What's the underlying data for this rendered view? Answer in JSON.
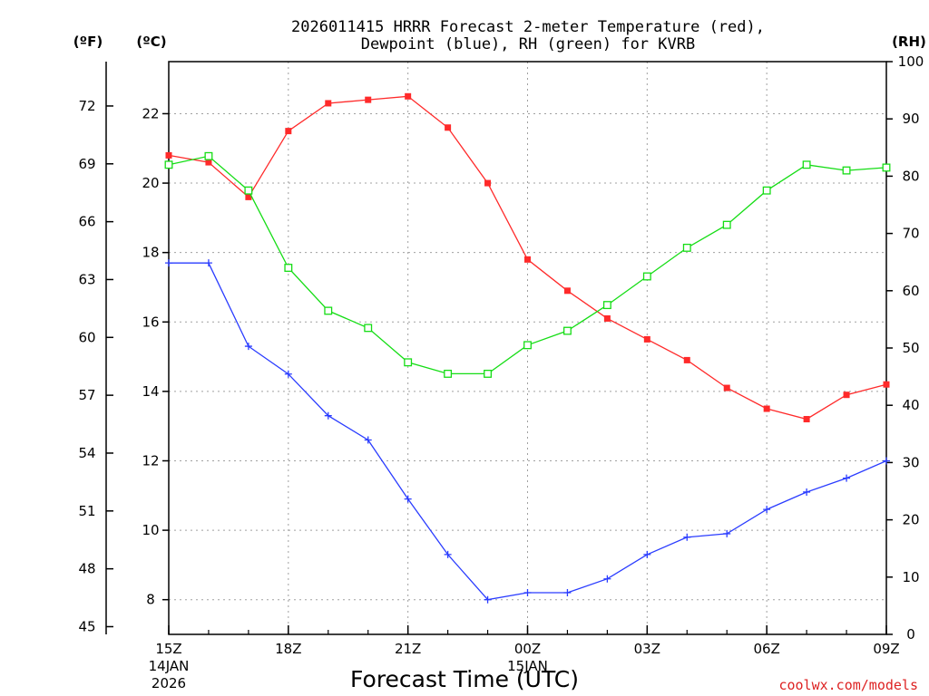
{
  "colors": {
    "temperature": "#ff2a2a",
    "dewpoint": "#2a3cff",
    "rh": "#15dd15",
    "credit": "#dd2222"
  },
  "chart_data": {
    "type": "line",
    "title_line1": "2026011415 HRRR Forecast 2-meter Temperature (red),",
    "title_line2": "Dewpoint (blue), RH (green) for KVRB",
    "xlabel": "Forecast Time (UTC)",
    "credit": "coolwx.com/models",
    "units": {
      "fahrenheit": "(ºF)",
      "celsius": "(ºC)",
      "rh": "(RH)"
    },
    "x_hours": [
      0,
      1,
      2,
      3,
      4,
      5,
      6,
      7,
      8,
      9,
      10,
      11,
      12,
      13,
      14,
      15,
      16,
      17,
      18
    ],
    "x_ticks": [
      {
        "hour": 0,
        "label": "15Z",
        "label2": "14JAN",
        "label3": "2026"
      },
      {
        "hour": 3,
        "label": "18Z"
      },
      {
        "hour": 6,
        "label": "21Z"
      },
      {
        "hour": 9,
        "label": "00Z",
        "label2": "15JAN"
      },
      {
        "hour": 12,
        "label": "03Z"
      },
      {
        "hour": 15,
        "label": "06Z"
      },
      {
        "hour": 18,
        "label": "09Z"
      }
    ],
    "xlim": [
      0,
      18
    ],
    "celsius_axis": {
      "ylim": [
        7,
        23.5
      ],
      "ticks": [
        "8",
        "10",
        "12",
        "14",
        "16",
        "18",
        "20",
        "22"
      ]
    },
    "fahrenheit_axis": {
      "ylim": [
        44.6,
        74.3
      ],
      "ticks": [
        "45",
        "48",
        "51",
        "54",
        "57",
        "60",
        "63",
        "66",
        "69",
        "72"
      ]
    },
    "rh_axis": {
      "ylim": [
        0,
        100
      ],
      "ticks": [
        "0",
        "10",
        "20",
        "30",
        "40",
        "50",
        "60",
        "70",
        "80",
        "90",
        "100"
      ]
    },
    "series": [
      {
        "name": "Temperature",
        "axis": "celsius",
        "color": "#ff2a2a",
        "marker": "filled-square",
        "values": [
          20.8,
          20.6,
          19.6,
          21.5,
          22.3,
          22.4,
          22.5,
          21.6,
          20.0,
          17.8,
          16.9,
          16.1,
          15.5,
          14.9,
          14.1,
          13.5,
          13.2,
          13.9,
          14.2
        ]
      },
      {
        "name": "Dewpoint",
        "axis": "celsius",
        "color": "#2a3cff",
        "marker": "plus",
        "values": [
          17.7,
          17.7,
          15.3,
          14.5,
          13.3,
          12.6,
          10.9,
          9.3,
          8.0,
          8.2,
          8.2,
          8.6,
          9.3,
          9.8,
          9.9,
          10.6,
          11.1,
          11.5,
          12.0
        ]
      },
      {
        "name": "RH",
        "axis": "rh",
        "color": "#15dd15",
        "marker": "open-square",
        "values": [
          82,
          83.5,
          77.5,
          64,
          56.5,
          53.5,
          47.5,
          45.5,
          45.5,
          50.5,
          53,
          57.5,
          62.5,
          67.5,
          71.5,
          77.5,
          82,
          81,
          81.5
        ]
      }
    ]
  }
}
